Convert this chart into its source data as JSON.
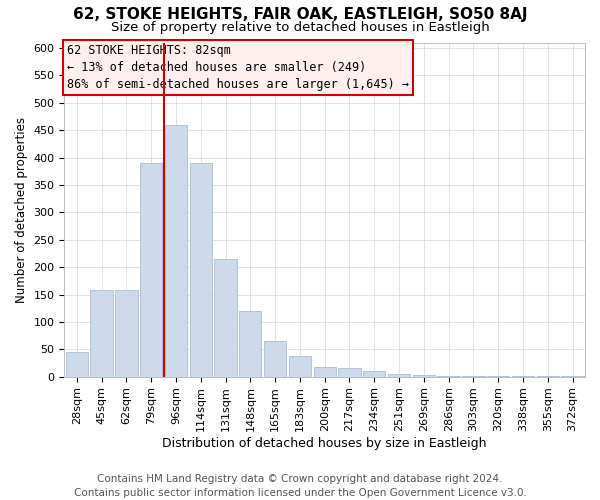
{
  "title": "62, STOKE HEIGHTS, FAIR OAK, EASTLEIGH, SO50 8AJ",
  "subtitle": "Size of property relative to detached houses in Eastleigh",
  "xlabel": "Distribution of detached houses by size in Eastleigh",
  "ylabel": "Number of detached properties",
  "footer_line1": "Contains HM Land Registry data © Crown copyright and database right 2024.",
  "footer_line2": "Contains public sector information licensed under the Open Government Licence v3.0.",
  "annotation_title": "62 STOKE HEIGHTS: 82sqm",
  "annotation_line2": "← 13% of detached houses are smaller (249)",
  "annotation_line3": "86% of semi-detached houses are larger (1,645) →",
  "categories": [
    "28sqm",
    "45sqm",
    "62sqm",
    "79sqm",
    "96sqm",
    "114sqm",
    "131sqm",
    "148sqm",
    "165sqm",
    "183sqm",
    "200sqm",
    "217sqm",
    "234sqm",
    "251sqm",
    "269sqm",
    "286sqm",
    "303sqm",
    "320sqm",
    "338sqm",
    "355sqm",
    "372sqm"
  ],
  "values": [
    45,
    158,
    158,
    390,
    460,
    390,
    215,
    120,
    65,
    38,
    18,
    16,
    10,
    5,
    3,
    2,
    1,
    1,
    1,
    1,
    1
  ],
  "bar_color": "#ccdaeb",
  "bar_edge_color": "#a8bfd4",
  "vline_x_pos": 3.5,
  "vline_color": "#cc0000",
  "annotation_box_facecolor": "#fff0f0",
  "annotation_box_edgecolor": "#cc0000",
  "ylim": [
    0,
    610
  ],
  "yticks": [
    0,
    50,
    100,
    150,
    200,
    250,
    300,
    350,
    400,
    450,
    500,
    550,
    600
  ],
  "title_fontsize": 11,
  "subtitle_fontsize": 9.5,
  "xlabel_fontsize": 9,
  "ylabel_fontsize": 8.5,
  "tick_fontsize": 8,
  "annotation_fontsize": 8.5,
  "footer_fontsize": 7.5,
  "background_color": "#ffffff",
  "grid_color": "#d4dfe8",
  "annotation_font": "monospace"
}
